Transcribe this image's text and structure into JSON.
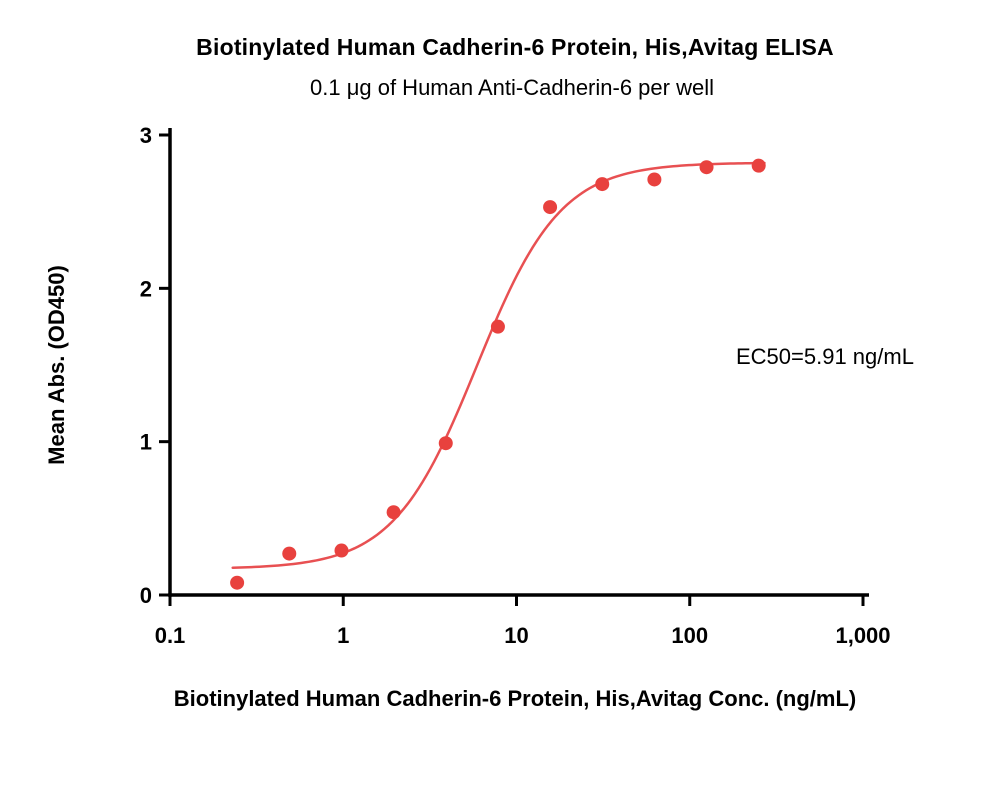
{
  "chart_data": {
    "type": "scatter",
    "title": "Biotinylated Human Cadherin-6 Protein, His,Avitag ELISA",
    "subtitle": "0.1 μg of Human Anti-Cadherin-6 per well",
    "xlabel": "Biotinylated Human Cadherin-6 Protein, His,Avitag Conc. (ng/mL)",
    "ylabel": "Mean Abs. (OD450)",
    "annotation": "EC50=5.91 ng/mL",
    "ec50_ng_ml": 5.91,
    "x_scale": "log",
    "xlim": [
      0.1,
      1000
    ],
    "ylim": [
      0,
      3
    ],
    "grid": false,
    "legend": "none",
    "x": [
      0.244,
      0.488,
      0.977,
      1.953,
      3.906,
      7.813,
      15.625,
      31.25,
      62.5,
      125,
      250
    ],
    "y": [
      0.08,
      0.27,
      0.29,
      0.54,
      0.99,
      1.75,
      2.53,
      2.68,
      2.71,
      2.79,
      2.8
    ],
    "x_ticks": [
      {
        "value": 0.1,
        "label": "0.1"
      },
      {
        "value": 1,
        "label": "1"
      },
      {
        "value": 10,
        "label": "10"
      },
      {
        "value": 100,
        "label": "100"
      },
      {
        "value": 1000,
        "label": "1,000"
      }
    ],
    "y_ticks": [
      {
        "value": 0,
        "label": "0"
      },
      {
        "value": 1,
        "label": "1"
      },
      {
        "value": 2,
        "label": "2"
      },
      {
        "value": 3,
        "label": "3"
      }
    ],
    "fit_curve": {
      "model": "4PL",
      "bottom": 0.17,
      "top": 2.82,
      "ec50": 5.91,
      "hill": 1.8,
      "x_start": 0.23,
      "x_end": 270
    },
    "point_color": "#E8413E",
    "curve_color": "#E85052",
    "axis_color": "#000000"
  }
}
